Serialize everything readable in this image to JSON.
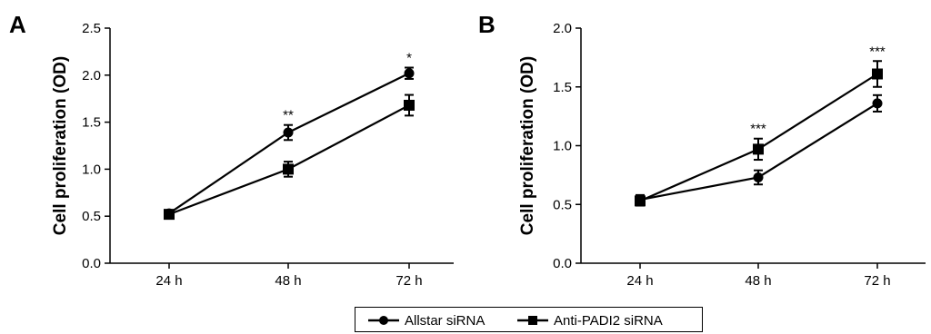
{
  "chart_data": [
    {
      "panel": "A",
      "type": "line",
      "ylabel": "Cell proliferation (OD)",
      "xlabel": "",
      "categories": [
        "24 h",
        "48 h",
        "72 h"
      ],
      "ylim": [
        0.0,
        2.5
      ],
      "yticks": [
        "0.0",
        "0.5",
        "1.0",
        "1.5",
        "2.0",
        "2.5"
      ],
      "series": [
        {
          "name": "Allstar siRNA",
          "marker": "circle",
          "values": [
            0.53,
            1.39,
            2.02
          ],
          "errors": [
            0.03,
            0.08,
            0.06
          ]
        },
        {
          "name": "Anti-PADI2 siRNA",
          "marker": "square",
          "values": [
            0.52,
            1.0,
            1.68
          ],
          "errors": [
            0.03,
            0.08,
            0.11
          ]
        }
      ],
      "annotations": [
        {
          "category": "48 h",
          "text": "**"
        },
        {
          "category": "72 h",
          "text": "*"
        }
      ]
    },
    {
      "panel": "B",
      "type": "line",
      "ylabel": "Cell proliferation (OD)",
      "xlabel": "",
      "categories": [
        "24 h",
        "48 h",
        "72 h"
      ],
      "ylim": [
        0.0,
        2.0
      ],
      "yticks": [
        "0.0",
        "0.5",
        "1.0",
        "1.5",
        "2.0"
      ],
      "series": [
        {
          "name": "Allstar siRNA",
          "marker": "circle",
          "values": [
            0.54,
            0.73,
            1.36
          ],
          "errors": [
            0.04,
            0.06,
            0.07
          ]
        },
        {
          "name": "Anti-PADI2 siRNA",
          "marker": "square",
          "values": [
            0.53,
            0.97,
            1.61
          ],
          "errors": [
            0.04,
            0.09,
            0.11
          ]
        }
      ],
      "annotations": [
        {
          "category": "48 h",
          "text": "***"
        },
        {
          "category": "72 h",
          "text": "***"
        }
      ]
    }
  ],
  "legend": {
    "items": [
      {
        "label": "Allstar siRNA",
        "marker": "circle"
      },
      {
        "label": "Anti-PADI2 siRNA",
        "marker": "square"
      }
    ]
  }
}
